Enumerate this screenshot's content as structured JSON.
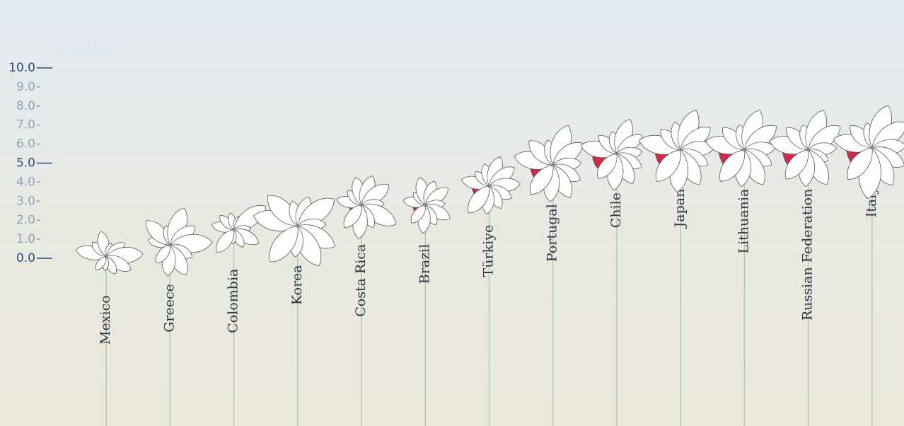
{
  "loading_text": "Loading",
  "chart_data": {
    "type": "flower",
    "categories": [
      "Mexico",
      "Greece",
      "Colombia",
      "Korea",
      "Costa Rica",
      "Brazil",
      "Türkiye",
      "Portugal",
      "Chile",
      "Japan",
      "Lithuania",
      "Russian Federation",
      "Italy"
    ],
    "values": [
      0.1,
      0.7,
      1.5,
      1.7,
      2.8,
      2.8,
      3.8,
      4.9,
      5.5,
      5.7,
      5.7,
      5.7,
      5.8
    ],
    "petals": [
      [
        0.3,
        5.5,
        3.5,
        4.5,
        2.5,
        4.0,
        6.5,
        5.0,
        3.5,
        2.5,
        3.0
      ],
      [
        0.0,
        4.0,
        6.0,
        3.5,
        7.0,
        5.5,
        7.5,
        4.5,
        6.0,
        5.5,
        4.0
      ],
      [
        1.2,
        4.0,
        3.5,
        3.0,
        2.5,
        7.0,
        3.0,
        5.0,
        3.5,
        2.5,
        5.0
      ],
      [
        1.4,
        8.0,
        7.5,
        4.5,
        5.5,
        8.0,
        5.0,
        7.5,
        8.0,
        5.5,
        8.0
      ],
      [
        2.2,
        4.5,
        3.5,
        5.0,
        5.5,
        6.0,
        4.0,
        7.0,
        4.5,
        6.0,
        5.0
      ],
      [
        2.2,
        4.0,
        3.0,
        5.0,
        4.5,
        5.0,
        3.5,
        5.0,
        4.0,
        5.0,
        4.0
      ],
      [
        3.0,
        5.0,
        3.5,
        4.0,
        5.5,
        5.5,
        5.5,
        4.5,
        4.5,
        5.0,
        6.0
      ],
      [
        4.0,
        7.0,
        6.0,
        4.5,
        7.5,
        6.5,
        5.0,
        5.5,
        6.5,
        6.5,
        6.5
      ],
      [
        4.3,
        6.5,
        4.5,
        4.0,
        6.5,
        5.5,
        4.5,
        5.0,
        6.0,
        6.5,
        5.5
      ],
      [
        4.5,
        7.5,
        5.0,
        5.0,
        7.5,
        6.5,
        6.0,
        5.5,
        7.0,
        7.5,
        7.0
      ],
      [
        4.5,
        7.0,
        5.5,
        4.5,
        7.5,
        7.0,
        5.5,
        5.5,
        7.0,
        6.5,
        7.0
      ],
      [
        4.5,
        7.0,
        5.5,
        4.5,
        7.5,
        7.0,
        5.0,
        4.0,
        7.0,
        6.5,
        6.5
      ],
      [
        4.5,
        7.0,
        5.5,
        4.5,
        8.0,
        7.5,
        6.0,
        6.5,
        7.5,
        9.0,
        7.0
      ]
    ],
    "petal_color": "#ffffff",
    "highlight_color": "#d42a4a",
    "stem_color": "#a9cbb2",
    "ylim": [
      0,
      10
    ],
    "yticks": [
      {
        "value": 0,
        "label": "0.0"
      },
      {
        "value": 1,
        "label": "1.0"
      },
      {
        "value": 2,
        "label": "2.0"
      },
      {
        "value": 3,
        "label": "3.0"
      },
      {
        "value": 4,
        "label": "4.0"
      },
      {
        "value": 5,
        "label": "5.0"
      },
      {
        "value": 6,
        "label": "6.0"
      },
      {
        "value": 7,
        "label": "7.0"
      },
      {
        "value": 8,
        "label": "8.0"
      },
      {
        "value": 9,
        "label": "9.0"
      },
      {
        "value": 10,
        "label": "10.0"
      }
    ]
  }
}
